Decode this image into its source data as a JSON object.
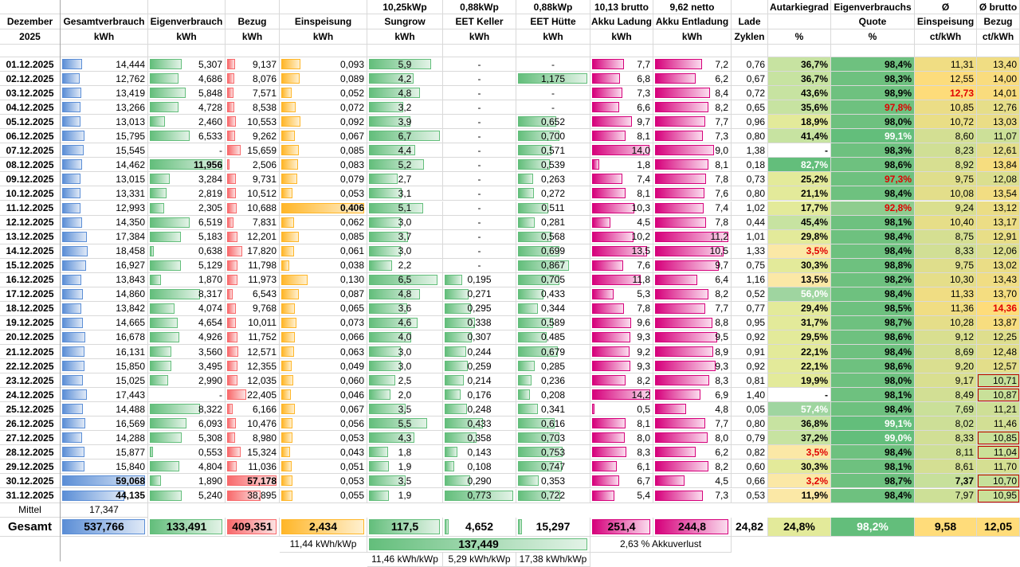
{
  "title_month": "Dezember",
  "title_year": "2025",
  "headers": [
    {
      "top": "",
      "mid": "Gesamtverbrauch",
      "unit": "kWh"
    },
    {
      "top": "",
      "mid": "Eigenverbrauch",
      "unit": "kWh"
    },
    {
      "top": "",
      "mid": "Bezug",
      "unit": "kWh"
    },
    {
      "top": "",
      "mid": "Einspeisung",
      "unit": "kWh"
    },
    {
      "top": "10,25kWp",
      "mid": "Sungrow",
      "unit": "kWh"
    },
    {
      "top": "0,88kWp",
      "mid": "EET Keller",
      "unit": "kWh"
    },
    {
      "top": "0,88kWp",
      "mid": "EET Hütte",
      "unit": "kWh"
    },
    {
      "top": "10,13 brutto",
      "mid": "Akku Ladung",
      "unit": "kWh"
    },
    {
      "top": "9,62 netto",
      "mid": "Akku Entladung",
      "unit": "kWh"
    },
    {
      "top": "",
      "mid": "Lade",
      "unit": "Zyklen"
    },
    {
      "top": "Autarkiegrad",
      "mid": "",
      "unit": "%"
    },
    {
      "top": "Eigenverbrauchs",
      "mid": "Quote",
      "unit": "%"
    },
    {
      "top": "Ø",
      "mid": "Einspeisung",
      "unit": "ct/kWh"
    },
    {
      "top": "Ø brutto",
      "mid": "Bezug",
      "unit": "ct/kWh"
    }
  ],
  "rows": [
    [
      "01.12.2025",
      "14,444",
      "5,307",
      "9,137",
      "0,093",
      "5,9",
      "-",
      "-",
      "7,7",
      "7,2",
      "0,76",
      "36,7%",
      "98,4%",
      "11,31",
      "13,40"
    ],
    [
      "02.12.2025",
      "12,762",
      "4,686",
      "8,076",
      "0,089",
      "4,2",
      "-",
      "1,175",
      "6,8",
      "6,2",
      "0,67",
      "36,7%",
      "98,3%",
      "12,55",
      "14,00"
    ],
    [
      "03.12.2025",
      "13,419",
      "5,848",
      "7,571",
      "0,052",
      "4,8",
      "-",
      "-",
      "7,3",
      "8,4",
      "0,72",
      "43,6%",
      "98,9%",
      "12,73",
      "14,01"
    ],
    [
      "04.12.2025",
      "13,266",
      "4,728",
      "8,538",
      "0,072",
      "3,2",
      "-",
      "-",
      "6,6",
      "8,2",
      "0,65",
      "35,6%",
      "97,8%",
      "10,85",
      "12,76"
    ],
    [
      "05.12.2025",
      "13,013",
      "2,460",
      "10,553",
      "0,092",
      "3,9",
      "-",
      "0,652",
      "9,7",
      "7,7",
      "0,96",
      "18,9%",
      "98,0%",
      "10,72",
      "13,03"
    ],
    [
      "06.12.2025",
      "15,795",
      "6,533",
      "9,262",
      "0,067",
      "6,7",
      "-",
      "0,700",
      "8,1",
      "7,3",
      "0,80",
      "41,4%",
      "99,1%",
      "8,60",
      "11,07"
    ],
    [
      "07.12.2025",
      "15,545",
      "-",
      "15,659",
      "0,085",
      "4,4",
      "-",
      "0,571",
      "14,0",
      "9,0",
      "1,38",
      "-",
      "98,3%",
      "8,23",
      "12,61"
    ],
    [
      "08.12.2025",
      "14,462",
      "11,956",
      "2,506",
      "0,083",
      "5,2",
      "-",
      "0,539",
      "1,8",
      "8,1",
      "0,18",
      "82,7%",
      "98,6%",
      "8,92",
      "13,84"
    ],
    [
      "09.12.2025",
      "13,015",
      "3,284",
      "9,731",
      "0,079",
      "2,7",
      "-",
      "0,263",
      "7,4",
      "7,8",
      "0,73",
      "25,2%",
      "97,3%",
      "9,75",
      "12,08"
    ],
    [
      "10.12.2025",
      "13,331",
      "2,819",
      "10,512",
      "0,053",
      "3,1",
      "-",
      "0,272",
      "8,1",
      "7,6",
      "0,80",
      "21,1%",
      "98,4%",
      "10,08",
      "13,54"
    ],
    [
      "11.12.2025",
      "12,993",
      "2,305",
      "10,688",
      "0,406",
      "5,1",
      "-",
      "0,511",
      "10,3",
      "7,4",
      "1,02",
      "17,7%",
      "92,8%",
      "9,24",
      "13,12"
    ],
    [
      "12.12.2025",
      "14,350",
      "6,519",
      "7,831",
      "0,062",
      "3,0",
      "-",
      "0,281",
      "4,5",
      "7,8",
      "0,44",
      "45,4%",
      "98,1%",
      "10,40",
      "13,17"
    ],
    [
      "13.12.2025",
      "17,384",
      "5,183",
      "12,201",
      "0,085",
      "3,7",
      "-",
      "0,568",
      "10,2",
      "11,2",
      "1,01",
      "29,8%",
      "98,4%",
      "8,75",
      "12,91"
    ],
    [
      "14.12.2025",
      "18,458",
      "0,638",
      "17,820",
      "0,061",
      "3,0",
      "-",
      "0,699",
      "13,5",
      "10,5",
      "1,33",
      "3,5%",
      "98,4%",
      "8,33",
      "12,06"
    ],
    [
      "15.12.2025",
      "16,927",
      "5,129",
      "11,798",
      "0,038",
      "2,2",
      "-",
      "0,867",
      "7,6",
      "9,7",
      "0,75",
      "30,3%",
      "98,8%",
      "9,75",
      "13,02"
    ],
    [
      "16.12.2025",
      "13,843",
      "1,870",
      "11,973",
      "0,130",
      "6,5",
      "0,195",
      "0,705",
      "11,8",
      "6,4",
      "1,16",
      "13,5%",
      "98,2%",
      "10,30",
      "13,43"
    ],
    [
      "17.12.2025",
      "14,860",
      "8,317",
      "6,543",
      "0,087",
      "4,8",
      "0,271",
      "0,433",
      "5,3",
      "8,2",
      "0,52",
      "56,0%",
      "98,4%",
      "11,33",
      "13,70"
    ],
    [
      "18.12.2025",
      "13,842",
      "4,074",
      "9,768",
      "0,065",
      "3,6",
      "0,295",
      "0,344",
      "7,8",
      "7,7",
      "0,77",
      "29,4%",
      "98,5%",
      "11,36",
      "14,36"
    ],
    [
      "19.12.2025",
      "14,665",
      "4,654",
      "10,011",
      "0,073",
      "4,6",
      "0,338",
      "0,589",
      "9,6",
      "8,8",
      "0,95",
      "31,7%",
      "98,7%",
      "10,28",
      "13,87"
    ],
    [
      "20.12.2025",
      "16,678",
      "4,926",
      "11,752",
      "0,066",
      "4,0",
      "0,307",
      "0,485",
      "9,3",
      "9,5",
      "0,92",
      "29,5%",
      "98,6%",
      "9,12",
      "12,25"
    ],
    [
      "21.12.2025",
      "16,131",
      "3,560",
      "12,571",
      "0,063",
      "3,0",
      "0,244",
      "0,679",
      "9,2",
      "8,9",
      "0,91",
      "22,1%",
      "98,4%",
      "8,69",
      "12,48"
    ],
    [
      "22.12.2025",
      "15,850",
      "3,495",
      "12,355",
      "0,049",
      "3,0",
      "0,259",
      "0,285",
      "9,3",
      "9,3",
      "0,92",
      "22,1%",
      "98,6%",
      "9,20",
      "12,57"
    ],
    [
      "23.12.2025",
      "15,025",
      "2,990",
      "12,035",
      "0,060",
      "2,5",
      "0,214",
      "0,236",
      "8,2",
      "8,3",
      "0,81",
      "19,9%",
      "98,0%",
      "9,17",
      "10,71"
    ],
    [
      "24.12.2025",
      "17,443",
      "-",
      "22,405",
      "0,046",
      "2,0",
      "0,176",
      "0,208",
      "14,2",
      "6,9",
      "1,40",
      "-",
      "98,1%",
      "8,49",
      "10,87"
    ],
    [
      "25.12.2025",
      "14,488",
      "8,322",
      "6,166",
      "0,067",
      "3,5",
      "0,248",
      "0,341",
      "0,5",
      "4,8",
      "0,05",
      "57,4%",
      "98,4%",
      "7,69",
      "11,21"
    ],
    [
      "26.12.2025",
      "16,569",
      "6,093",
      "10,476",
      "0,056",
      "5,5",
      "0,433",
      "0,616",
      "8,1",
      "7,7",
      "0,80",
      "36,8%",
      "99,1%",
      "8,02",
      "11,46"
    ],
    [
      "27.12.2025",
      "14,288",
      "5,308",
      "8,980",
      "0,053",
      "4,3",
      "0,358",
      "0,703",
      "8,0",
      "8,0",
      "0,79",
      "37,2%",
      "99,0%",
      "8,33",
      "10,85"
    ],
    [
      "28.12.2025",
      "15,877",
      "0,553",
      "15,324",
      "0,043",
      "1,8",
      "0,143",
      "0,753",
      "8,3",
      "6,2",
      "0,82",
      "3,5%",
      "98,4%",
      "8,11",
      "11,04"
    ],
    [
      "29.12.2025",
      "15,840",
      "4,804",
      "11,036",
      "0,051",
      "1,9",
      "0,108",
      "0,747",
      "6,1",
      "8,2",
      "0,60",
      "30,3%",
      "98,1%",
      "8,61",
      "11,70"
    ],
    [
      "30.12.2025",
      "59,068",
      "1,890",
      "57,178",
      "0,053",
      "3,5",
      "0,290",
      "0,353",
      "6,7",
      "4,5",
      "0,66",
      "3,2%",
      "98,7%",
      "7,37",
      "10,70"
    ],
    [
      "31.12.2025",
      "44,135",
      "5,240",
      "38,895",
      "0,055",
      "1,9",
      "0,773",
      "0,722",
      "5,4",
      "7,3",
      "0,53",
      "11,9%",
      "98,4%",
      "7,97",
      "10,95"
    ]
  ],
  "mittel_label": "Mittel",
  "mittel_value": "17,347",
  "totals_label": "Gesamt",
  "totals": [
    "537,766",
    "133,491",
    "409,351",
    "2,434",
    "117,5",
    "4,652",
    "15,297",
    "251,4",
    "244,8",
    "24,82",
    "24,8%",
    "98,2%",
    "9,58",
    "12,05"
  ],
  "summary": {
    "einspeisung_per_kwp": "11,44 kWh/kWp",
    "pv_total": "137,449",
    "akkuverlust_value": "2,63",
    "akkuverlust_label": "% Akkuverlust",
    "sungrow_per_kwp": "11,46 kWh/kWp",
    "keller_per_kwp": "5,29 kWh/kWp",
    "huette_per_kwp": "17,38 kWh/kWp"
  },
  "colors": {
    "verbrauch": "#5b8ed6",
    "eigen": "#63be7b",
    "bezug": "#f8696b",
    "einspeisung": "#ffb628",
    "akku": "#d6007b",
    "warn_text": "#e00000"
  }
}
